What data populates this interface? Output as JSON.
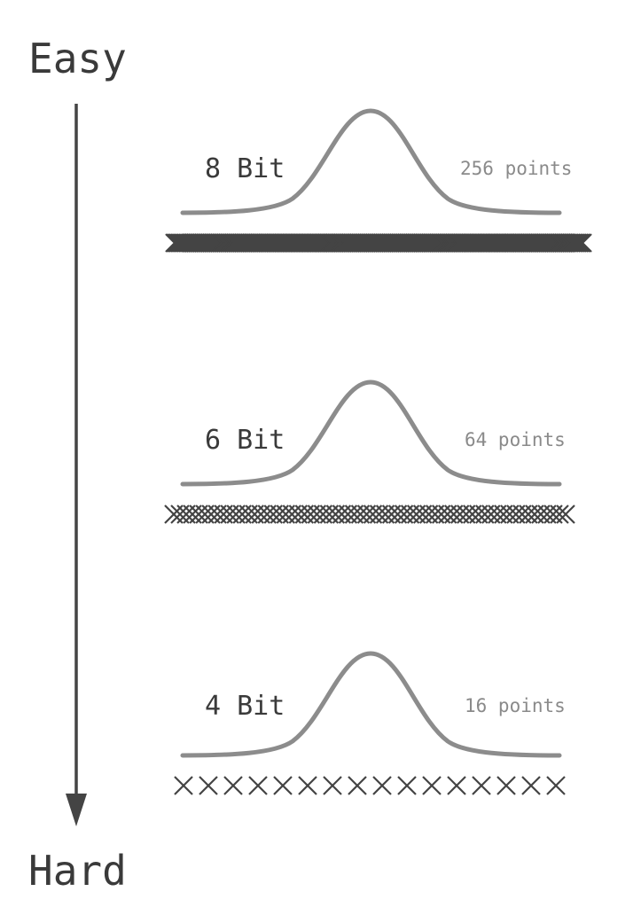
{
  "axis": {
    "top_label": "Easy",
    "bottom_label": "Hard",
    "arrow_color": "#444444"
  },
  "panels": [
    {
      "title": "8 Bit",
      "points_label": "256 points",
      "count": 256
    },
    {
      "title": "6 Bit",
      "points_label": "64 points",
      "count": 64
    },
    {
      "title": "4 Bit",
      "points_label": "16 points",
      "count": 16
    }
  ],
  "colors": {
    "curve": "#8c8c8c",
    "marker": "#444444",
    "title_text": "#3a3a3a",
    "points_text": "#8a8a8a"
  }
}
